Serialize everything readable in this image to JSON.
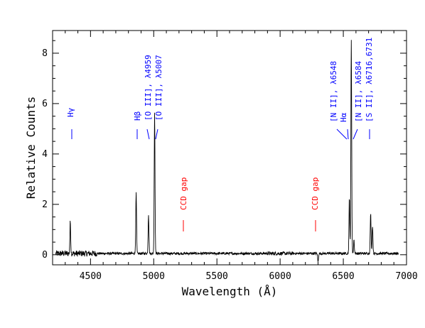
{
  "chart_data": {
    "type": "line",
    "title": "",
    "xlabel": "Wavelength (Å)",
    "ylabel": "Relative Counts",
    "xlim": [
      4200,
      7000
    ],
    "ylim": [
      -0.4,
      8.9
    ],
    "xticks": [
      4500,
      5000,
      5500,
      6000,
      6500,
      7000
    ],
    "yticks": [
      0,
      2,
      4,
      6,
      8
    ],
    "xminor_step": 100,
    "yminor_step": 0.5,
    "grid": false,
    "colors": {
      "line": "#000000",
      "line_id": "#0000ff",
      "ccd": "#ff0000"
    },
    "spectrum_peaks": [
      {
        "x": 4340,
        "y": 1.25
      },
      {
        "x": 4861,
        "y": 2.4
      },
      {
        "x": 4959,
        "y": 1.55
      },
      {
        "x": 5007,
        "y": 5.6
      },
      {
        "x": 6548,
        "y": 2.2
      },
      {
        "x": 6563,
        "y": 8.5
      },
      {
        "x": 6584,
        "y": 0.55
      },
      {
        "x": 6716,
        "y": 1.6
      },
      {
        "x": 6731,
        "y": 1.1
      }
    ],
    "spectrum_dips": [
      {
        "x": 6300,
        "y": -0.35
      }
    ],
    "line_ids": [
      {
        "label": "Hγ",
        "x": 4340,
        "color": "blue"
      },
      {
        "label": "Hβ",
        "x": 4861,
        "color": "blue"
      },
      {
        "label": "[O III], λ4959",
        "x": 4959,
        "color": "blue"
      },
      {
        "label": "[O III], λ5007",
        "x": 5007,
        "color": "blue"
      },
      {
        "label": "CCD gap",
        "x": 5240,
        "color": "red"
      },
      {
        "label": "CCD gap",
        "x": 6290,
        "color": "red"
      },
      {
        "label": "[N II], λ6548",
        "x": 6535,
        "color": "blue"
      },
      {
        "label": "Hα",
        "x": 6563,
        "color": "blue"
      },
      {
        "label": "[N II], λ6584",
        "x": 6590,
        "color": "blue"
      },
      {
        "label": "[S II], λ6716,6731",
        "x": 6724,
        "color": "blue"
      }
    ]
  }
}
